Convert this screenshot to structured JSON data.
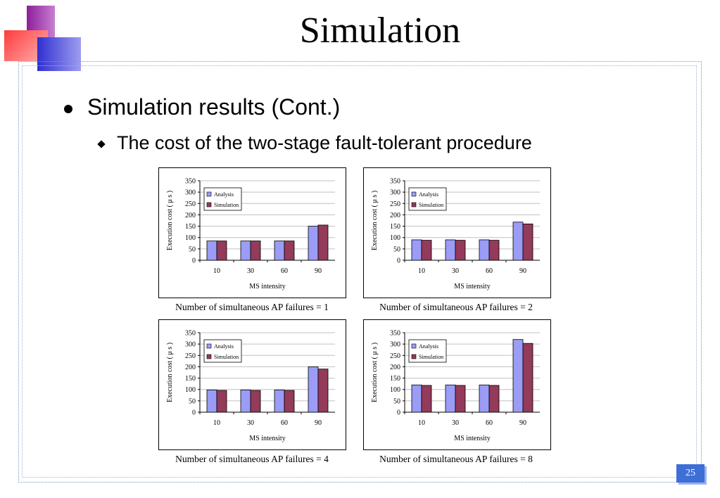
{
  "slide": {
    "title": "Simulation",
    "bullet1": "Simulation results (Cont.)",
    "bullet2": "The cost of the two-stage fault-tolerant procedure",
    "page_number": "25"
  },
  "colors": {
    "analysis": "#9a9cf6",
    "simulation": "#943a5a",
    "gridline": "#c0c0c0",
    "accent_magenta": "#8e1f9b",
    "accent_red": "#ff3b3b",
    "accent_blue": "#2f2fd0",
    "page_badge": "#3d6fd6"
  },
  "chart_data": [
    {
      "type": "bar",
      "caption": "Number of simultaneous AP failures = 1",
      "categories": [
        "10",
        "30",
        "60",
        "90"
      ],
      "series": [
        {
          "name": "Analysis",
          "values": [
            85,
            85,
            85,
            150
          ]
        },
        {
          "name": "Simulation",
          "values": [
            85,
            85,
            85,
            155
          ]
        }
      ],
      "xlabel": "MS intensity",
      "ylabel": "Execution cost ( μ s )",
      "ylim": [
        0,
        350
      ],
      "yticks": [
        "0",
        "50",
        "100",
        "150",
        "200",
        "250",
        "300",
        "350"
      ],
      "grid": true,
      "legend": "top-left"
    },
    {
      "type": "bar",
      "caption": "Number of simultaneous AP failures = 2",
      "categories": [
        "10",
        "30",
        "60",
        "90"
      ],
      "series": [
        {
          "name": "Analysis",
          "values": [
            90,
            90,
            90,
            168
          ]
        },
        {
          "name": "Simulation",
          "values": [
            88,
            88,
            88,
            160
          ]
        }
      ],
      "xlabel": "MS intensity",
      "ylabel": "Execution cost ( μ s )",
      "ylim": [
        0,
        350
      ],
      "yticks": [
        "0",
        "50",
        "100",
        "150",
        "200",
        "250",
        "300",
        "350"
      ],
      "grid": true,
      "legend": "top-left"
    },
    {
      "type": "bar",
      "caption": "Number of simultaneous AP failures = 4",
      "categories": [
        "10",
        "30",
        "60",
        "90"
      ],
      "series": [
        {
          "name": "Analysis",
          "values": [
            98,
            98,
            98,
            200
          ]
        },
        {
          "name": "Simulation",
          "values": [
            96,
            96,
            96,
            190
          ]
        }
      ],
      "xlabel": "MS intensity",
      "ylabel": "Execution cost ( μ s )",
      "ylim": [
        0,
        350
      ],
      "yticks": [
        "0",
        "50",
        "100",
        "150",
        "200",
        "250",
        "300",
        "350"
      ],
      "grid": true,
      "legend": "top-left"
    },
    {
      "type": "bar",
      "caption": "Number of simultaneous AP failures = 8",
      "categories": [
        "10",
        "30",
        "60",
        "90"
      ],
      "series": [
        {
          "name": "Analysis",
          "values": [
            120,
            120,
            120,
            320
          ]
        },
        {
          "name": "Simulation",
          "values": [
            118,
            118,
            118,
            303
          ]
        }
      ],
      "xlabel": "MS intensity",
      "ylabel": "Execution cost ( μ s )",
      "ylim": [
        0,
        350
      ],
      "yticks": [
        "0",
        "50",
        "100",
        "150",
        "200",
        "250",
        "300",
        "350"
      ],
      "grid": true,
      "legend": "top-left"
    }
  ]
}
